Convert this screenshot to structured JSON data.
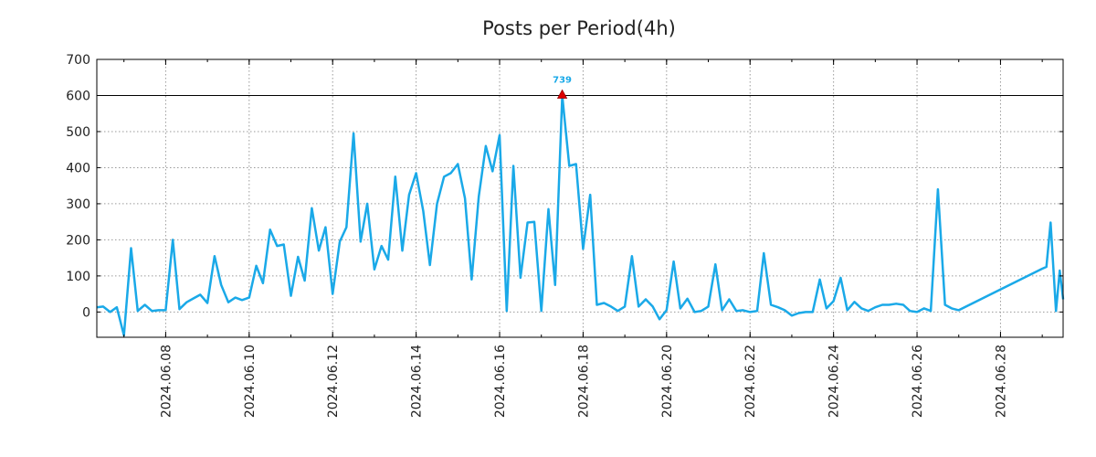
{
  "chart_data": {
    "type": "line",
    "title": "Posts per Period(4h)",
    "xlabel": "",
    "ylabel": "",
    "ylim": [
      -70,
      700
    ],
    "yticks": [
      0,
      100,
      200,
      300,
      400,
      500,
      600,
      700
    ],
    "grid": true,
    "x_range_days": [
      6.35,
      29.5
    ],
    "xticks": [
      {
        "label": "2024.06.08",
        "day": 8
      },
      {
        "label": "2024.06.10",
        "day": 10
      },
      {
        "label": "2024.06.12",
        "day": 12
      },
      {
        "label": "2024.06.14",
        "day": 14
      },
      {
        "label": "2024.06.16",
        "day": 16
      },
      {
        "label": "2024.06.18",
        "day": 18
      },
      {
        "label": "2024.06.20",
        "day": 20
      },
      {
        "label": "2024.06.22",
        "day": 22
      },
      {
        "label": "2024.06.24",
        "day": 24
      },
      {
        "label": "2024.06.26",
        "day": 26
      },
      {
        "label": "2024.06.28",
        "day": 28
      }
    ],
    "reference_line": {
      "value": 600
    },
    "peak": {
      "day": 17.5,
      "display_value": 600,
      "label": "739"
    },
    "series": [
      {
        "name": "posts",
        "color": "#1aa9e8",
        "points": [
          [
            6.35,
            13
          ],
          [
            6.5,
            15
          ],
          [
            6.67,
            0
          ],
          [
            6.83,
            13
          ],
          [
            7.0,
            -65
          ],
          [
            7.17,
            177
          ],
          [
            7.33,
            3
          ],
          [
            7.5,
            20
          ],
          [
            7.67,
            3
          ],
          [
            7.83,
            5
          ],
          [
            8.0,
            5
          ],
          [
            8.17,
            200
          ],
          [
            8.33,
            8
          ],
          [
            8.5,
            27
          ],
          [
            8.67,
            38
          ],
          [
            8.83,
            48
          ],
          [
            9.0,
            25
          ],
          [
            9.17,
            155
          ],
          [
            9.33,
            75
          ],
          [
            9.5,
            27
          ],
          [
            9.67,
            40
          ],
          [
            9.83,
            33
          ],
          [
            10.0,
            40
          ],
          [
            10.17,
            128
          ],
          [
            10.33,
            80
          ],
          [
            10.5,
            228
          ],
          [
            10.67,
            183
          ],
          [
            10.83,
            187
          ],
          [
            11.0,
            45
          ],
          [
            11.17,
            153
          ],
          [
            11.33,
            87
          ],
          [
            11.5,
            288
          ],
          [
            11.67,
            170
          ],
          [
            11.83,
            235
          ],
          [
            12.0,
            50
          ],
          [
            12.17,
            195
          ],
          [
            12.33,
            235
          ],
          [
            12.5,
            495
          ],
          [
            12.67,
            195
          ],
          [
            12.83,
            300
          ],
          [
            13.0,
            118
          ],
          [
            13.17,
            183
          ],
          [
            13.33,
            145
          ],
          [
            13.5,
            375
          ],
          [
            13.67,
            170
          ],
          [
            13.83,
            325
          ],
          [
            14.0,
            385
          ],
          [
            14.17,
            280
          ],
          [
            14.33,
            130
          ],
          [
            14.5,
            300
          ],
          [
            14.67,
            375
          ],
          [
            14.83,
            385
          ],
          [
            15.0,
            410
          ],
          [
            15.17,
            315
          ],
          [
            15.33,
            90
          ],
          [
            15.5,
            320
          ],
          [
            15.67,
            460
          ],
          [
            15.83,
            390
          ],
          [
            16.0,
            490
          ],
          [
            16.17,
            3
          ],
          [
            16.33,
            405
          ],
          [
            16.5,
            95
          ],
          [
            16.67,
            248
          ],
          [
            16.83,
            250
          ],
          [
            17.0,
            3
          ],
          [
            17.17,
            285
          ],
          [
            17.33,
            75
          ],
          [
            17.5,
            600
          ],
          [
            17.67,
            405
          ],
          [
            17.83,
            410
          ],
          [
            18.0,
            175
          ],
          [
            18.17,
            325
          ],
          [
            18.33,
            20
          ],
          [
            18.5,
            25
          ],
          [
            18.67,
            15
          ],
          [
            18.83,
            3
          ],
          [
            19.0,
            15
          ],
          [
            19.17,
            155
          ],
          [
            19.33,
            15
          ],
          [
            19.5,
            35
          ],
          [
            19.67,
            15
          ],
          [
            19.83,
            -20
          ],
          [
            20.0,
            5
          ],
          [
            20.17,
            140
          ],
          [
            20.33,
            10
          ],
          [
            20.5,
            37
          ],
          [
            20.67,
            0
          ],
          [
            20.83,
            3
          ],
          [
            21.0,
            15
          ],
          [
            21.17,
            132
          ],
          [
            21.33,
            5
          ],
          [
            21.5,
            35
          ],
          [
            21.67,
            3
          ],
          [
            21.83,
            5
          ],
          [
            22.0,
            0
          ],
          [
            22.17,
            3
          ],
          [
            22.33,
            163
          ],
          [
            22.5,
            20
          ],
          [
            22.67,
            13
          ],
          [
            22.83,
            5
          ],
          [
            23.0,
            -10
          ],
          [
            23.17,
            -3
          ],
          [
            23.33,
            0
          ],
          [
            23.5,
            0
          ],
          [
            23.67,
            90
          ],
          [
            23.83,
            10
          ],
          [
            24.0,
            30
          ],
          [
            24.17,
            95
          ],
          [
            24.33,
            5
          ],
          [
            24.5,
            28
          ],
          [
            24.67,
            10
          ],
          [
            24.83,
            3
          ],
          [
            25.0,
            13
          ],
          [
            25.17,
            20
          ],
          [
            25.33,
            20
          ],
          [
            25.5,
            23
          ],
          [
            25.67,
            20
          ],
          [
            25.83,
            3
          ],
          [
            26.0,
            0
          ],
          [
            26.17,
            10
          ],
          [
            26.33,
            3
          ],
          [
            26.5,
            340
          ],
          [
            26.67,
            20
          ],
          [
            26.83,
            10
          ],
          [
            27.0,
            5
          ],
          [
            29.0,
            120
          ],
          [
            29.1,
            125
          ],
          [
            29.2,
            248
          ],
          [
            29.33,
            3
          ],
          [
            29.42,
            115
          ],
          [
            29.5,
            35
          ]
        ]
      }
    ]
  }
}
